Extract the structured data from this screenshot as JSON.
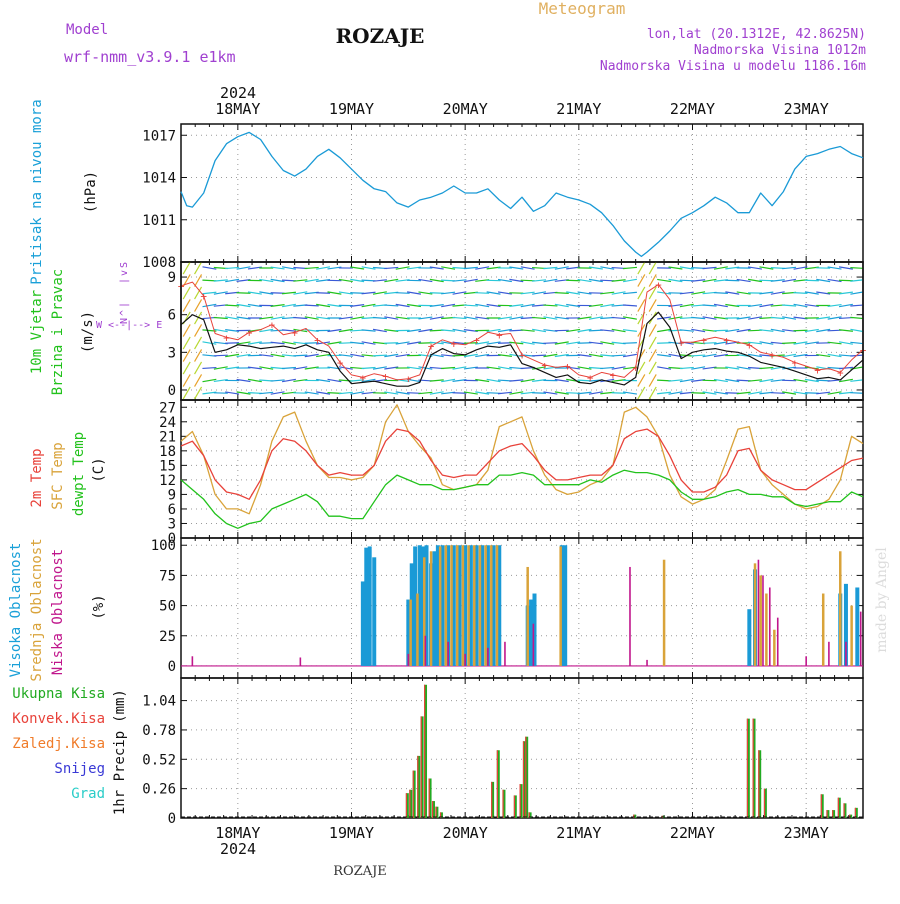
{
  "header": {
    "model_label": "Model",
    "model_name": "wrf-nmm_v3.9.1 e1km",
    "location": "ROZAJE",
    "meteogram_label": "Meteogram",
    "coords": "lon,lat (20.1312E, 42.8625N)",
    "elevation": "Nadmorska Visina 1012m",
    "model_elevation": "Nadmorska Visina u modelu 1186.16m",
    "watermark": "made by Angel",
    "footer_location": "ROZAJE"
  },
  "time_axis": {
    "year": "2024",
    "days": [
      "18MAY",
      "19MAY",
      "20MAY",
      "21MAY",
      "22MAY",
      "23MAY"
    ]
  },
  "colors": {
    "pressure": "#1a9ad6",
    "temp2m": "#e8423a",
    "sfc": "#d9a33a",
    "dewpt": "#22c21c",
    "high_cloud": "#1a9ad6",
    "mid_cloud": "#d9a33a",
    "low_cloud": "#c0168c",
    "total_precip": "#22aa22",
    "conv_precip": "#e8423a",
    "frozen_precip": "#f07c2a",
    "snow": "#3a3ad6",
    "hail": "#2acdc8",
    "model_text": "#a040d0"
  },
  "chart_data": [
    {
      "type": "line",
      "panel": "pressure",
      "ylabel": "Pritisak na nivou mora",
      "unit": "(hPa)",
      "ylim": [
        1008,
        1017.8
      ],
      "yticks": [
        1008,
        1011,
        1014,
        1017
      ],
      "x": [
        17.5,
        17.55,
        17.6,
        17.7,
        17.8,
        17.9,
        18.0,
        18.1,
        18.2,
        18.3,
        18.4,
        18.5,
        18.6,
        18.7,
        18.8,
        18.9,
        19.0,
        19.1,
        19.2,
        19.3,
        19.4,
        19.5,
        19.6,
        19.7,
        19.8,
        19.9,
        20.0,
        20.1,
        20.2,
        20.3,
        20.4,
        20.5,
        20.6,
        20.7,
        20.8,
        20.9,
        21.0,
        21.1,
        21.2,
        21.3,
        21.4,
        21.5,
        21.55,
        21.6,
        21.7,
        21.8,
        21.9,
        22.0,
        22.1,
        22.2,
        22.3,
        22.4,
        22.5,
        22.6,
        22.7,
        22.8,
        22.9,
        23.0,
        23.1,
        23.2,
        23.3,
        23.4,
        23.5
      ],
      "series": [
        {
          "values": [
            1013,
            1012,
            1011.9,
            1012.9,
            1015.2,
            1016.4,
            1016.9,
            1017.2,
            1016.7,
            1015.5,
            1014.5,
            1014.1,
            1014.6,
            1015.5,
            1016.0,
            1015.4,
            1014.6,
            1013.8,
            1013.2,
            1013.0,
            1012.2,
            1011.9,
            1012.4,
            1012.6,
            1012.9,
            1013.4,
            1012.9,
            1012.9,
            1013.2,
            1012.4,
            1011.8,
            1012.6,
            1011.6,
            1012.0,
            1012.9,
            1012.6,
            1012.4,
            1012.1,
            1011.5,
            1010.6,
            1009.5,
            1008.7,
            1008.4,
            1008.7,
            1009.4,
            1010.2,
            1011.1,
            1011.5,
            1012.0,
            1012.6,
            1012.2,
            1011.5,
            1011.5,
            1012.9,
            1012.0,
            1013.0,
            1014.6,
            1015.5,
            1015.7,
            1016.0,
            1016.2,
            1015.7,
            1015.4
          ]
        }
      ]
    },
    {
      "type": "line",
      "panel": "wind",
      "ylabel": [
        "10m Vjetar",
        "Brzina i Pravac"
      ],
      "unit": "(m/s)",
      "legend_glyph": [
        "N",
        "^",
        "|",
        "W <--|--> E",
        "|",
        "v",
        "S"
      ],
      "ylim": [
        -0.8,
        10.2
      ],
      "yticks": [
        0,
        3,
        6,
        9
      ],
      "x": [
        17.5,
        17.6,
        17.7,
        17.8,
        17.9,
        18.0,
        18.1,
        18.2,
        18.3,
        18.4,
        18.5,
        18.6,
        18.7,
        18.8,
        18.9,
        19.0,
        19.1,
        19.2,
        19.3,
        19.4,
        19.5,
        19.6,
        19.7,
        19.8,
        19.9,
        20.0,
        20.1,
        20.2,
        20.3,
        20.4,
        20.5,
        20.6,
        20.7,
        20.8,
        20.9,
        21.0,
        21.1,
        21.2,
        21.3,
        21.4,
        21.5,
        21.6,
        21.7,
        21.8,
        21.9,
        22.0,
        22.1,
        22.2,
        22.3,
        22.4,
        22.5,
        22.6,
        22.7,
        22.8,
        22.9,
        23.0,
        23.1,
        23.2,
        23.3,
        23.4,
        23.5
      ],
      "series": [
        {
          "name": "speed",
          "values": [
            5.2,
            6.0,
            5.6,
            3.0,
            3.2,
            3.6,
            3.5,
            3.3,
            3.4,
            3.5,
            3.3,
            3.6,
            3.2,
            3.0,
            1.5,
            0.5,
            0.6,
            0.7,
            0.5,
            0.3,
            0.3,
            0.6,
            2.8,
            3.3,
            2.9,
            2.8,
            3.2,
            3.5,
            3.4,
            3.6,
            2.1,
            1.8,
            1.4,
            1.0,
            1.2,
            0.6,
            0.5,
            0.8,
            0.6,
            0.4,
            1.0,
            5.3,
            6.2,
            5.0,
            2.5,
            3.0,
            3.2,
            3.3,
            3.1,
            3.0,
            2.7,
            2.2,
            2.0,
            1.8,
            1.5,
            1.2,
            0.9,
            1.0,
            0.8,
            1.6,
            2.4
          ]
        },
        {
          "name": "gust",
          "values": [
            8.3,
            8.6,
            7.5,
            4.5,
            4.2,
            4.0,
            4.6,
            4.8,
            5.2,
            4.4,
            4.6,
            4.9,
            4.0,
            3.5,
            2.2,
            1.2,
            1.0,
            1.3,
            1.1,
            0.8,
            0.9,
            1.2,
            3.5,
            4.0,
            3.7,
            3.6,
            4.0,
            4.6,
            4.4,
            4.5,
            2.8,
            2.4,
            2.0,
            1.8,
            1.9,
            1.2,
            1.0,
            1.4,
            1.2,
            1.0,
            1.8,
            7.8,
            8.4,
            7.2,
            3.8,
            3.8,
            4.0,
            4.2,
            4.0,
            3.8,
            3.6,
            3.0,
            2.8,
            2.6,
            2.2,
            1.9,
            1.6,
            1.7,
            1.4,
            2.4,
            3.2
          ]
        }
      ]
    },
    {
      "type": "line",
      "panel": "temperature",
      "ylabel": [
        "2m Temp",
        "SFC Temp",
        "dewpt Temp"
      ],
      "unit": "(C)",
      "ylim": [
        0,
        28.5
      ],
      "yticks": [
        0,
        3,
        6,
        9,
        12,
        15,
        18,
        21,
        24,
        27
      ],
      "x": [
        17.5,
        17.6,
        17.7,
        17.8,
        17.9,
        18.0,
        18.1,
        18.2,
        18.3,
        18.4,
        18.5,
        18.6,
        18.7,
        18.8,
        18.9,
        19.0,
        19.1,
        19.2,
        19.3,
        19.4,
        19.5,
        19.6,
        19.7,
        19.8,
        19.9,
        20.0,
        20.1,
        20.2,
        20.3,
        20.4,
        20.5,
        20.6,
        20.7,
        20.8,
        20.9,
        21.0,
        21.1,
        21.2,
        21.3,
        21.4,
        21.5,
        21.6,
        21.7,
        21.8,
        21.9,
        22.0,
        22.1,
        22.2,
        22.3,
        22.4,
        22.5,
        22.6,
        22.7,
        22.8,
        22.9,
        23.0,
        23.1,
        23.2,
        23.3,
        23.4,
        23.5
      ],
      "series": [
        {
          "name": "2m Temp",
          "values": [
            19,
            20,
            17,
            12,
            9.5,
            9,
            8,
            12,
            18,
            20.5,
            20,
            18,
            15,
            13,
            13.5,
            13,
            13,
            15,
            20,
            22.5,
            22,
            20,
            16,
            13,
            12.5,
            13,
            13,
            15.5,
            18,
            19,
            19.5,
            17,
            14,
            12,
            12,
            12.5,
            13,
            13,
            15,
            20.5,
            22,
            22.5,
            21,
            17,
            12,
            9.5,
            9.5,
            10.5,
            13,
            18,
            18.5,
            14,
            12,
            11,
            10,
            10,
            11.5,
            13,
            14.5,
            16,
            16.5
          ]
        },
        {
          "name": "SFC Temp",
          "values": [
            20,
            22,
            17,
            9,
            6,
            6,
            5,
            11,
            20,
            25,
            26,
            20,
            15,
            12.5,
            12.5,
            12,
            12.5,
            15,
            24,
            27.5,
            22,
            19,
            16.5,
            11,
            10,
            10.5,
            11,
            14,
            23,
            24,
            25,
            18,
            13,
            10,
            9,
            9.5,
            11,
            12,
            15,
            26,
            27,
            25,
            21,
            13,
            8.5,
            7,
            8,
            10,
            16,
            22.5,
            23,
            14,
            11,
            9,
            7,
            6,
            6.5,
            8,
            12,
            21,
            19.5
          ]
        },
        {
          "name": "dewpt Temp",
          "values": [
            12,
            10,
            8,
            5,
            3,
            2,
            3,
            3.5,
            6,
            7,
            8,
            9,
            7.5,
            4.5,
            4.5,
            4,
            4,
            7.5,
            11,
            13,
            12,
            11,
            11,
            10,
            10,
            10.5,
            11,
            11,
            13,
            13,
            13.5,
            13,
            11,
            11,
            11,
            11,
            12,
            11.5,
            13,
            14,
            13.5,
            13.5,
            13,
            12,
            9.5,
            8,
            8,
            8.5,
            9.5,
            10,
            9,
            9,
            8.5,
            8.5,
            7,
            6.5,
            7,
            7.5,
            7.5,
            9.5,
            8.5
          ]
        }
      ]
    },
    {
      "type": "bar",
      "panel": "clouds",
      "ylabel": [
        "Visoka Oblacnost",
        "Srednja Oblacnost",
        "Niska Oblacnost"
      ],
      "unit": "(%)",
      "ylim": [
        0,
        100
      ],
      "yticks": [
        0,
        25,
        50,
        75,
        100
      ],
      "series": [
        {
          "name": "Visoka Oblacnost",
          "x": [
            19.1,
            19.13,
            19.16,
            19.2,
            19.5,
            19.53,
            19.56,
            19.6,
            19.63,
            19.66,
            19.7,
            19.73,
            19.76,
            19.8,
            19.85,
            19.9,
            19.95,
            20.0,
            20.05,
            20.1,
            20.15,
            20.2,
            20.25,
            20.3,
            20.55,
            20.58,
            20.61,
            20.85,
            20.88,
            22.5,
            22.55,
            23.3,
            23.35,
            23.45
          ],
          "values": [
            70,
            98,
            99,
            90,
            55,
            85,
            99,
            100,
            99,
            100,
            85,
            95,
            100,
            100,
            100,
            100,
            100,
            100,
            100,
            100,
            100,
            100,
            100,
            100,
            50,
            55,
            60,
            100,
            100,
            47,
            80,
            60,
            68,
            65
          ]
        },
        {
          "name": "Srednja Oblacnost",
          "x": [
            19.52,
            19.58,
            19.64,
            19.7,
            19.78,
            19.83,
            19.88,
            19.93,
            19.98,
            20.03,
            20.08,
            20.13,
            20.18,
            20.23,
            20.28,
            20.55,
            20.84,
            21.75,
            22.55,
            22.6,
            22.65,
            22.72,
            23.15,
            23.3,
            23.4
          ],
          "values": [
            55,
            60,
            90,
            95,
            99,
            100,
            100,
            100,
            100,
            100,
            100,
            100,
            100,
            100,
            100,
            82,
            99,
            88,
            85,
            75,
            60,
            30,
            60,
            95,
            50
          ]
        },
        {
          "name": "Niska Oblacnost",
          "x": [
            17.6,
            18.55,
            19.5,
            19.65,
            19.85,
            20.0,
            20.2,
            20.35,
            20.6,
            21.45,
            21.6,
            22.58,
            22.62,
            22.68,
            22.75,
            23.0,
            23.2,
            23.35,
            23.48
          ],
          "values": [
            8,
            7,
            10,
            25,
            20,
            10,
            15,
            20,
            35,
            82,
            5,
            88,
            75,
            65,
            40,
            8,
            20,
            20,
            45
          ]
        }
      ]
    },
    {
      "type": "bar",
      "panel": "precip",
      "ylabel": "1hr Precip",
      "unit": "(mm)",
      "legend": [
        "Ukupna Kisa",
        "Konvek.Kisa",
        "Zaledj.Kisa",
        "Snijeg",
        "Grad"
      ],
      "ylim": [
        0,
        1.24
      ],
      "yticks": [
        0,
        0.26,
        0.52,
        0.78,
        1.04
      ],
      "x": [
        19.5,
        19.53,
        19.56,
        19.6,
        19.63,
        19.66,
        19.7,
        19.73,
        19.76,
        19.8,
        20.25,
        20.3,
        20.35,
        20.45,
        20.5,
        20.53,
        20.55,
        20.58,
        21.5,
        21.75,
        22.5,
        22.55,
        22.6,
        22.65,
        23.15,
        23.2,
        23.25,
        23.3,
        23.35,
        23.4,
        23.45
      ],
      "series": [
        {
          "name": "Ukupna Kisa",
          "values": [
            0.22,
            0.25,
            0.42,
            0.55,
            0.9,
            1.18,
            0.35,
            0.15,
            0.1,
            0.05,
            0.32,
            0.6,
            0.25,
            0.2,
            0.3,
            0.68,
            0.72,
            0.05,
            0.03,
            0.02,
            0.88,
            0.88,
            0.6,
            0.26,
            0.21,
            0.07,
            0.07,
            0.18,
            0.13,
            0.03,
            0.09
          ]
        }
      ]
    }
  ]
}
